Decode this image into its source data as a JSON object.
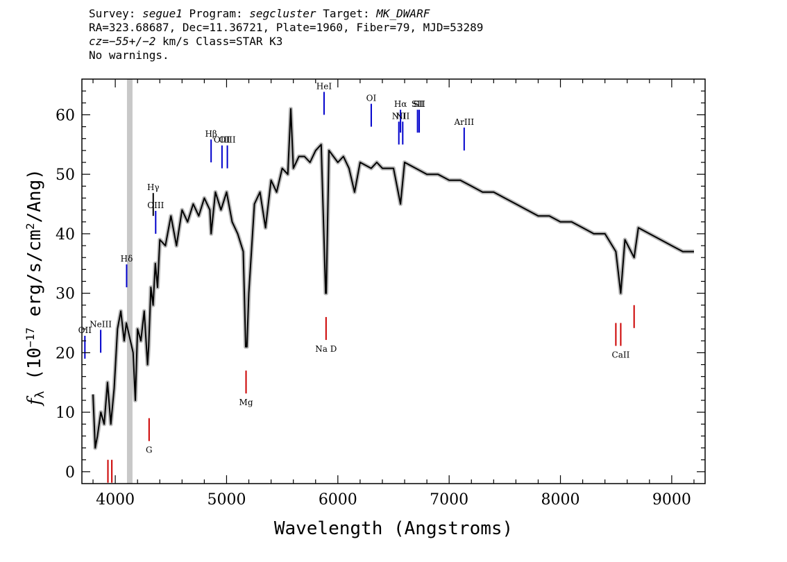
{
  "header": {
    "line1": {
      "survey_label": "Survey:",
      "survey": "segue1",
      "program_label": "Program:",
      "program": "segcluster",
      "target_label": "Target:",
      "target": "MK_DWARF"
    },
    "line2": "RA=323.68687, Dec=11.36721, Plate=1960, Fiber=79, MJD=53289",
    "line3": {
      "cz_label": "cz=",
      "cz": "−55+/−2",
      "rest": " km/s Class=STAR K3"
    },
    "line4": "No warnings."
  },
  "chart_data": {
    "type": "line",
    "xlabel": "Wavelength (Angstroms)",
    "ylabel": "f_λ (10^-17 erg/s/cm^2/Ang)",
    "xlim": [
      3700,
      9300
    ],
    "ylim": [
      -2,
      66
    ],
    "xticks": [
      4000,
      5000,
      6000,
      7000,
      8000,
      9000
    ],
    "yticks": [
      0,
      10,
      20,
      30,
      40,
      50,
      60
    ],
    "masked_band": [
      4105,
      4155
    ],
    "series": [
      {
        "line_color": "#000000",
        "error_color": "#bbbbbb",
        "points": [
          [
            3800,
            13
          ],
          [
            3820,
            4
          ],
          [
            3840,
            6
          ],
          [
            3870,
            10
          ],
          [
            3900,
            8
          ],
          [
            3930,
            15
          ],
          [
            3960,
            8
          ],
          [
            3990,
            14
          ],
          [
            4020,
            24
          ],
          [
            4050,
            27
          ],
          [
            4080,
            22
          ],
          [
            4100,
            25
          ],
          [
            4160,
            20
          ],
          [
            4180,
            12
          ],
          [
            4200,
            24
          ],
          [
            4230,
            22
          ],
          [
            4260,
            27
          ],
          [
            4290,
            18
          ],
          [
            4300,
            21
          ],
          [
            4320,
            31
          ],
          [
            4340,
            28
          ],
          [
            4360,
            35
          ],
          [
            4380,
            31
          ],
          [
            4400,
            39
          ],
          [
            4450,
            38
          ],
          [
            4500,
            43
          ],
          [
            4550,
            38
          ],
          [
            4600,
            44
          ],
          [
            4650,
            42
          ],
          [
            4700,
            45
          ],
          [
            4750,
            43
          ],
          [
            4800,
            46
          ],
          [
            4850,
            44
          ],
          [
            4861,
            40
          ],
          [
            4900,
            47
          ],
          [
            4950,
            44
          ],
          [
            5000,
            47
          ],
          [
            5050,
            42
          ],
          [
            5100,
            40
          ],
          [
            5150,
            37
          ],
          [
            5172,
            21
          ],
          [
            5183,
            21
          ],
          [
            5200,
            30
          ],
          [
            5250,
            45
          ],
          [
            5300,
            47
          ],
          [
            5350,
            41
          ],
          [
            5400,
            49
          ],
          [
            5450,
            47
          ],
          [
            5500,
            51
          ],
          [
            5550,
            50
          ],
          [
            5577,
            61
          ],
          [
            5600,
            51
          ],
          [
            5650,
            53
          ],
          [
            5700,
            53
          ],
          [
            5750,
            52
          ],
          [
            5800,
            54
          ],
          [
            5850,
            55
          ],
          [
            5890,
            30
          ],
          [
            5896,
            30
          ],
          [
            5920,
            54
          ],
          [
            6000,
            52
          ],
          [
            6050,
            53
          ],
          [
            6100,
            51
          ],
          [
            6150,
            47
          ],
          [
            6200,
            52
          ],
          [
            6300,
            51
          ],
          [
            6350,
            52
          ],
          [
            6400,
            51
          ],
          [
            6450,
            51
          ],
          [
            6500,
            51
          ],
          [
            6563,
            45
          ],
          [
            6600,
            52
          ],
          [
            6700,
            51
          ],
          [
            6800,
            50
          ],
          [
            6900,
            50
          ],
          [
            7000,
            49
          ],
          [
            7100,
            49
          ],
          [
            7200,
            48
          ],
          [
            7300,
            47
          ],
          [
            7400,
            47
          ],
          [
            7500,
            46
          ],
          [
            7600,
            45
          ],
          [
            7700,
            44
          ],
          [
            7800,
            43
          ],
          [
            7900,
            43
          ],
          [
            8000,
            42
          ],
          [
            8100,
            42
          ],
          [
            8200,
            41
          ],
          [
            8300,
            40
          ],
          [
            8400,
            40
          ],
          [
            8498,
            37
          ],
          [
            8542,
            30
          ],
          [
            8580,
            39
          ],
          [
            8662,
            36
          ],
          [
            8700,
            41
          ],
          [
            8800,
            40
          ],
          [
            8900,
            39
          ],
          [
            9000,
            38
          ],
          [
            9100,
            37
          ],
          [
            9200,
            37
          ]
        ]
      }
    ],
    "emission_lines": [
      {
        "label": "OII",
        "x": 3727,
        "y": 19,
        "color": "#0000cc"
      },
      {
        "label": "NeIII",
        "x": 3869,
        "y": 20,
        "color": "#0000cc"
      },
      {
        "label": "Hδ",
        "x": 4102,
        "y": 31,
        "color": "#0000cc"
      },
      {
        "label": "Hγ",
        "x": 4341,
        "y": 43,
        "color": "#000000"
      },
      {
        "label": "OIII",
        "x": 4363,
        "y": 40,
        "color": "#0000cc"
      },
      {
        "label": "Hβ",
        "x": 4861,
        "y": 52,
        "color": "#0000cc"
      },
      {
        "label": "OIII",
        "x": 4959,
        "y": 51,
        "color": "#0000cc"
      },
      {
        "label": "OIII",
        "x": 5007,
        "y": 51,
        "color": "#0000cc"
      },
      {
        "label": "HeI",
        "x": 5876,
        "y": 60,
        "color": "#0000cc"
      },
      {
        "label": "OI",
        "x": 6300,
        "y": 58,
        "color": "#0000cc"
      },
      {
        "label": "NII",
        "x": 6548,
        "y": 55,
        "color": "#0000cc"
      },
      {
        "label": "Hα",
        "x": 6563,
        "y": 57,
        "color": "#0000cc"
      },
      {
        "label": "NII",
        "x": 6583,
        "y": 55,
        "color": "#0000cc"
      },
      {
        "label": "SII",
        "x": 6716,
        "y": 57,
        "color": "#0000cc"
      },
      {
        "label": "SII",
        "x": 6731,
        "y": 57,
        "color": "#0000cc"
      },
      {
        "label": "ArIII",
        "x": 7135,
        "y": 54,
        "color": "#0000cc"
      }
    ],
    "absorption_lines": [
      {
        "label": "",
        "x": 3934,
        "y": 2,
        "color": "#cc0000"
      },
      {
        "label": "",
        "x": 3969,
        "y": 2,
        "color": "#cc0000"
      },
      {
        "label": "G",
        "x": 4304,
        "y": 9,
        "color": "#cc0000"
      },
      {
        "label": "Mg",
        "x": 5175,
        "y": 17,
        "color": "#cc0000"
      },
      {
        "label": "Na D",
        "x": 5894,
        "y": 26,
        "color": "#cc0000"
      },
      {
        "label": "",
        "x": 8498,
        "y": 25,
        "color": "#cc0000"
      },
      {
        "label": "CaII",
        "x": 8542,
        "y": 25,
        "color": "#cc0000"
      },
      {
        "label": "",
        "x": 8662,
        "y": 28,
        "color": "#cc0000"
      }
    ]
  }
}
